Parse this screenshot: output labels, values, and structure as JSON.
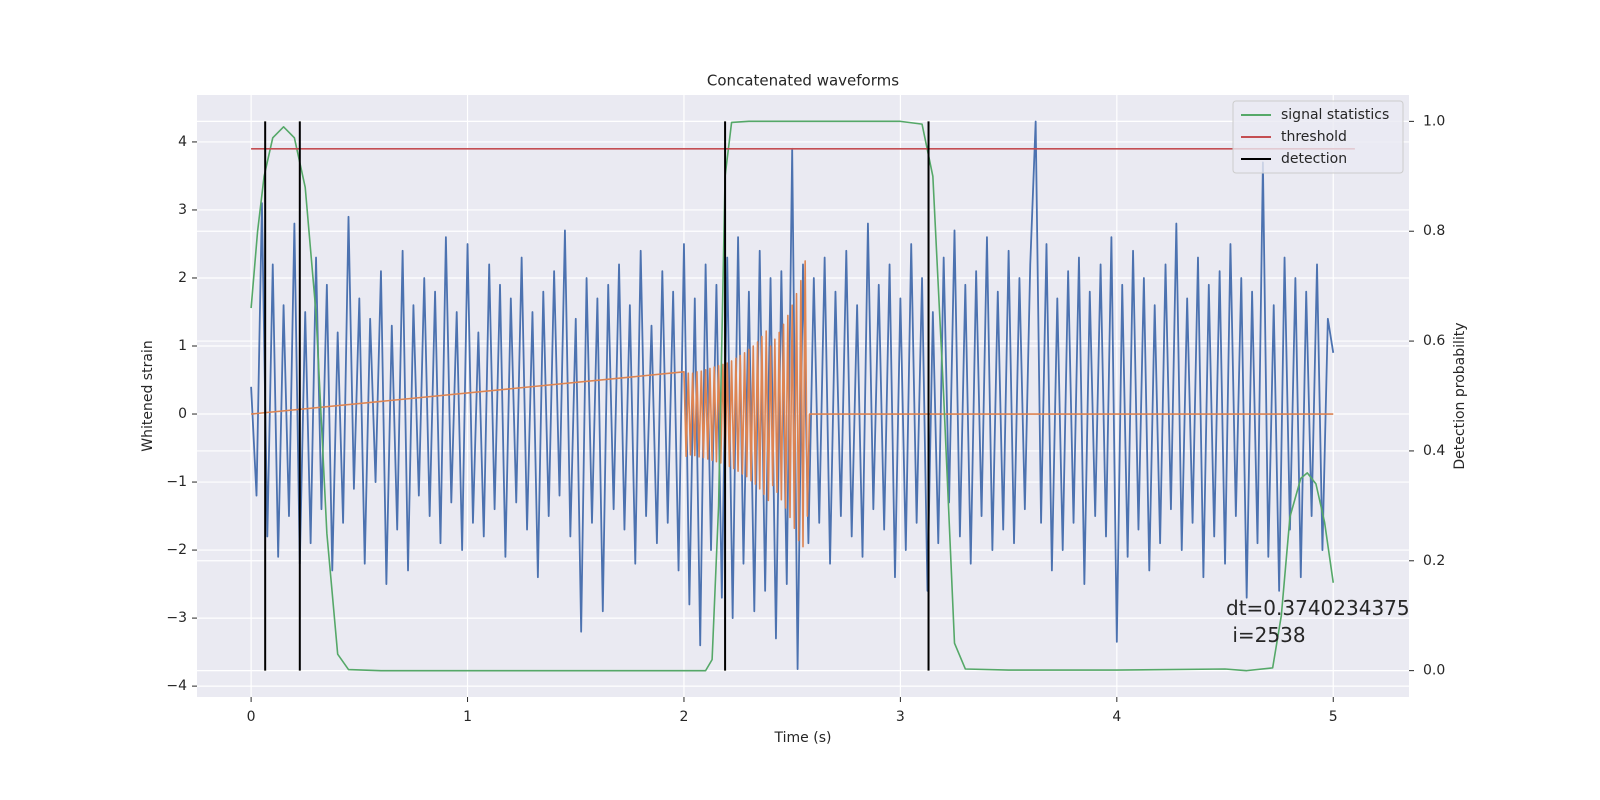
{
  "chart_data": {
    "type": "line",
    "title": "Concatenated waveforms",
    "xlabel": "Time (s)",
    "ylabel": "Whitened strain",
    "y2label": "Detection probability",
    "xlim": [
      -0.25,
      5.35
    ],
    "xticks": [
      0,
      1,
      2,
      3,
      4,
      5
    ],
    "ylim": [
      -4.16,
      4.69
    ],
    "yticks": [
      {
        "value": -4,
        "label": "−4"
      },
      {
        "value": -3,
        "label": "−3"
      },
      {
        "value": -2,
        "label": "−2"
      },
      {
        "value": -1,
        "label": "−1"
      },
      0,
      1,
      2,
      3,
      4
    ],
    "y2lim": [
      -0.048,
      1.048
    ],
    "y2ticks": [
      {
        "value": 0,
        "label": "0.0"
      },
      0.2,
      0.4,
      0.6,
      0.8,
      {
        "value": 1,
        "label": "1.0"
      }
    ],
    "grid": true,
    "legend": "upper right",
    "annotation": [
      "dt=0.3740234375",
      " i=2538"
    ],
    "series": [
      {
        "color": "#4c72b0",
        "x": [
          0,
          0.025,
          0.05,
          0.075,
          0.1,
          0.125,
          0.15,
          0.175,
          0.2,
          0.225,
          0.25,
          0.275,
          0.3,
          0.325,
          0.35,
          0.375,
          0.4,
          0.425,
          0.45,
          0.475,
          0.5,
          0.525,
          0.55,
          0.575,
          0.6,
          0.625,
          0.65,
          0.675,
          0.7,
          0.725,
          0.75,
          0.775,
          0.8,
          0.825,
          0.85,
          0.875,
          0.9,
          0.925,
          0.95,
          0.975,
          1,
          1.025,
          1.05,
          1.075,
          1.1,
          1.125,
          1.15,
          1.175,
          1.2,
          1.225,
          1.25,
          1.275,
          1.3,
          1.325,
          1.35,
          1.375,
          1.4,
          1.425,
          1.45,
          1.475,
          1.5,
          1.525,
          1.55,
          1.575,
          1.6,
          1.625,
          1.65,
          1.675,
          1.7,
          1.725,
          1.75,
          1.775,
          1.8,
          1.825,
          1.85,
          1.875,
          1.9,
          1.925,
          1.95,
          1.975,
          2,
          2.025,
          2.05,
          2.075,
          2.1,
          2.125,
          2.15,
          2.175,
          2.2,
          2.225,
          2.25,
          2.275,
          2.3,
          2.325,
          2.35,
          2.375,
          2.4,
          2.425,
          2.45,
          2.475,
          2.5,
          2.525,
          2.55,
          2.575,
          2.6,
          2.625,
          2.65,
          2.675,
          2.7,
          2.725,
          2.75,
          2.775,
          2.8,
          2.825,
          2.85,
          2.875,
          2.9,
          2.925,
          2.95,
          2.975,
          3,
          3.025,
          3.05,
          3.075,
          3.1,
          3.125,
          3.15,
          3.175,
          3.2,
          3.225,
          3.25,
          3.275,
          3.3,
          3.325,
          3.35,
          3.375,
          3.4,
          3.425,
          3.45,
          3.475,
          3.5,
          3.525,
          3.55,
          3.575,
          3.6,
          3.625,
          3.65,
          3.675,
          3.7,
          3.725,
          3.75,
          3.775,
          3.8,
          3.825,
          3.85,
          3.875,
          3.9,
          3.925,
          3.95,
          3.975,
          4,
          4.025,
          4.05,
          4.075,
          4.1,
          4.125,
          4.15,
          4.175,
          4.2,
          4.225,
          4.25,
          4.275,
          4.3,
          4.325,
          4.35,
          4.375,
          4.4,
          4.425,
          4.45,
          4.475,
          4.5,
          4.525,
          4.55,
          4.575,
          4.6,
          4.625,
          4.65,
          4.675,
          4.7,
          4.725,
          4.75,
          4.775,
          4.8,
          4.825,
          4.85,
          4.875,
          4.9,
          4.925,
          4.95,
          4.975,
          5
        ],
        "values": [
          0.4,
          -1.2,
          3.1,
          -1.8,
          2.2,
          -2.1,
          1.6,
          -1.5,
          2.8,
          -2.2,
          1.5,
          -1.9,
          2.3,
          -1.4,
          1.9,
          -2.3,
          1.2,
          -1.6,
          2.9,
          -1.1,
          1.7,
          -2.2,
          1.4,
          -1.0,
          2.1,
          -2.5,
          1.3,
          -1.7,
          2.4,
          -2.3,
          1.6,
          -1.2,
          2.0,
          -1.5,
          1.8,
          -1.9,
          2.6,
          -1.3,
          1.5,
          -2.0,
          2.5,
          -1.6,
          1.2,
          -1.8,
          2.2,
          -1.4,
          1.9,
          -2.1,
          1.7,
          -1.3,
          2.3,
          -1.7,
          1.5,
          -2.4,
          1.8,
          -1.5,
          2.1,
          -1.2,
          2.7,
          -1.8,
          1.4,
          -3.2,
          2.0,
          -1.6,
          1.7,
          -2.9,
          1.9,
          -1.4,
          2.2,
          -1.7,
          1.6,
          -2.2,
          2.4,
          -1.5,
          1.3,
          -1.9,
          2.1,
          -1.6,
          1.8,
          -2.3,
          2.5,
          -2.8,
          1.7,
          -3.4,
          2.2,
          -2.0,
          1.9,
          -2.7,
          2.3,
          -3.0,
          2.6,
          -2.2,
          1.8,
          -2.9,
          2.4,
          -2.6,
          2.0,
          -3.3,
          2.1,
          -2.5,
          3.9,
          -3.75,
          2.2,
          -1.9,
          2.0,
          -1.6,
          2.3,
          -2.2,
          1.8,
          -1.5,
          2.4,
          -1.8,
          1.6,
          -2.1,
          2.8,
          -1.4,
          1.9,
          -1.7,
          2.2,
          -2.4,
          1.7,
          -2.0,
          2.5,
          -1.6,
          2.0,
          -2.6,
          1.5,
          -1.9,
          2.3,
          -1.3,
          2.7,
          -1.8,
          1.9,
          -2.2,
          2.1,
          -1.5,
          2.6,
          -2.0,
          1.8,
          -1.7,
          2.4,
          -1.9,
          2.0,
          -1.4,
          2.2,
          4.3,
          -1.6,
          2.5,
          -2.3,
          1.7,
          -2.0,
          2.1,
          -1.6,
          2.3,
          -2.5,
          1.8,
          -1.5,
          2.2,
          -1.8,
          2.6,
          -3.35,
          1.9,
          -2.1,
          2.4,
          -1.7,
          2.0,
          -2.3,
          1.6,
          -1.9,
          2.2,
          -1.4,
          2.8,
          -2.0,
          1.7,
          -1.6,
          2.3,
          -2.4,
          1.9,
          -1.8,
          2.1,
          -2.2,
          2.5,
          -1.5,
          2.0,
          -2.7,
          1.8,
          -1.9,
          3.7,
          -2.1,
          1.6,
          -2.6,
          2.3,
          -1.7,
          2.0,
          -2.4,
          1.8,
          -1.5,
          2.2,
          -2.0,
          1.4,
          0.9
        ]
      },
      {
        "color": "#dd8452",
        "x": [
          0,
          2,
          2.01,
          2.02,
          2.03,
          2.04,
          2.05,
          2.06,
          2.07,
          2.08,
          2.09,
          2.1,
          2.11,
          2.12,
          2.13,
          2.14,
          2.15,
          2.16,
          2.17,
          2.18,
          2.19,
          2.2,
          2.21,
          2.22,
          2.23,
          2.24,
          2.25,
          2.26,
          2.27,
          2.28,
          2.29,
          2.3,
          2.31,
          2.32,
          2.33,
          2.34,
          2.35,
          2.36,
          2.37,
          2.38,
          2.39,
          2.4,
          2.41,
          2.42,
          2.43,
          2.44,
          2.45,
          2.46,
          2.47,
          2.48,
          2.49,
          2.5,
          2.51,
          2.52,
          2.53,
          2.54,
          2.55,
          2.56,
          2.57,
          2.58,
          5
        ],
        "values": [
          0,
          0.62,
          -0.62,
          0.6,
          -0.6,
          0.6,
          -0.61,
          0.62,
          -0.63,
          0.63,
          -0.64,
          0.65,
          -0.66,
          0.67,
          -0.68,
          0.69,
          -0.7,
          0.71,
          -0.72,
          0.73,
          -0.74,
          0.75,
          -0.77,
          0.78,
          -0.8,
          0.82,
          -0.84,
          0.86,
          -0.88,
          0.9,
          -0.92,
          0.95,
          -0.98,
          1.0,
          -1.03,
          1.06,
          -1.1,
          1.14,
          -1.18,
          1.22,
          -1.27,
          1.0,
          -1.05,
          1.1,
          -1.15,
          1.2,
          -1.26,
          1.32,
          -1.38,
          1.45,
          -1.52,
          1.6,
          -1.68,
          1.77,
          -1.86,
          1.96,
          -1.95,
          2.25,
          -1.5,
          0,
          0
        ]
      },
      {
        "name": "signal statistics",
        "color": "#55a868",
        "axis": "y2",
        "x": [
          0,
          0.03,
          0.06,
          0.1,
          0.15,
          0.2,
          0.25,
          0.3,
          0.35,
          0.4,
          0.45,
          0.6,
          2.0,
          2.1,
          2.13,
          2.16,
          2.19,
          2.22,
          2.3,
          3.0,
          3.1,
          3.15,
          3.2,
          3.25,
          3.3,
          3.5,
          4.0,
          4.5,
          4.6,
          4.72,
          4.76,
          4.8,
          4.85,
          4.88,
          4.92,
          4.96,
          5.0
        ],
        "values": [
          0.66,
          0.8,
          0.9,
          0.97,
          0.99,
          0.97,
          0.88,
          0.65,
          0.25,
          0.03,
          0.002,
          0,
          0,
          0,
          0.02,
          0.3,
          0.9,
          0.998,
          1.0,
          1.0,
          0.995,
          0.9,
          0.5,
          0.05,
          0.003,
          0.001,
          0.001,
          0.003,
          0,
          0.005,
          0.1,
          0.28,
          0.35,
          0.36,
          0.34,
          0.27,
          0.16
        ]
      },
      {
        "name": "threshold",
        "color": "#c44e52",
        "axis": "y2",
        "x": [
          0,
          5.1
        ],
        "values": [
          0.95,
          0.95
        ]
      },
      {
        "name": "detection",
        "color": "#000000",
        "axis": "y2",
        "style": "vlines",
        "x": [
          0.065,
          0.225,
          2.19,
          3.13
        ],
        "ymin": 0,
        "ymax": 1
      }
    ]
  }
}
